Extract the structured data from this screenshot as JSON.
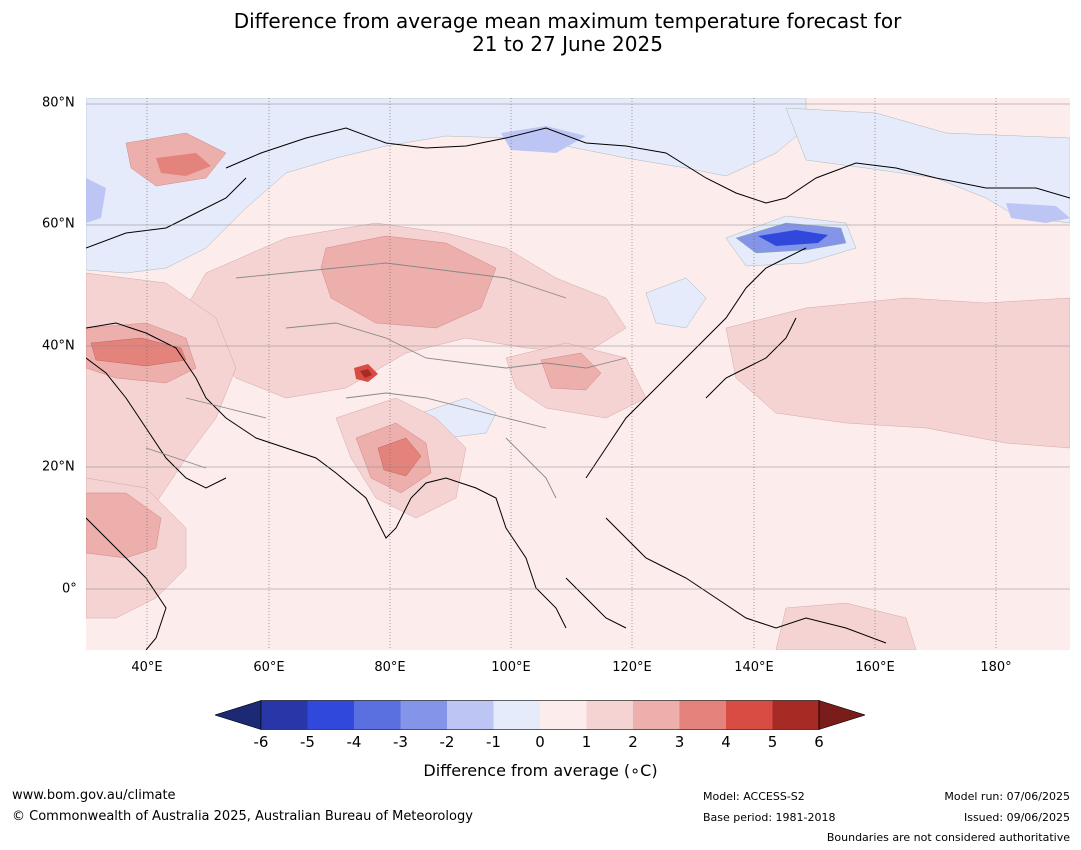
{
  "title": {
    "line1": "Difference from average mean maximum temperature forecast for",
    "line2": "21 to 27 June 2025"
  },
  "map": {
    "lat_labels": [
      "80°N",
      "60°N",
      "40°N",
      "20°N",
      "0°"
    ],
    "lon_labels": [
      "40°E",
      "60°E",
      "80°E",
      "100°E",
      "120°E",
      "140°E",
      "160°E",
      "180°"
    ],
    "extent": {
      "lon": [
        30,
        192
      ],
      "lat": [
        -10,
        80
      ]
    }
  },
  "colorbar": {
    "title": "Difference from average (∘C)",
    "ticks": [
      "-6",
      "-5",
      "-4",
      "-3",
      "-2",
      "-1",
      "0",
      "1",
      "2",
      "3",
      "4",
      "5",
      "6"
    ],
    "colors": {
      "below": "#1c2a75",
      "bins": [
        "#2836a8",
        "#3148dc",
        "#5a6fe0",
        "#8494e8",
        "#bcc5f3",
        "#e6ebfb",
        "#fcecec",
        "#f5d3d3",
        "#ecafac",
        "#e4827c",
        "#d84c44",
        "#a82a25"
      ],
      "above": "#7a1d1a"
    }
  },
  "footer": {
    "website": "www.bom.gov.au/climate",
    "copyright": "© Commonwealth of Australia 2025, Australian Bureau of Meteorology",
    "model": "Model: ACCESS-S2",
    "base_period": "Base period: 1981-2018",
    "model_run": "Model run: 07/06/2025",
    "issued": "Issued: 09/06/2025",
    "disclaimer": "Boundaries are not considered authoritative"
  }
}
